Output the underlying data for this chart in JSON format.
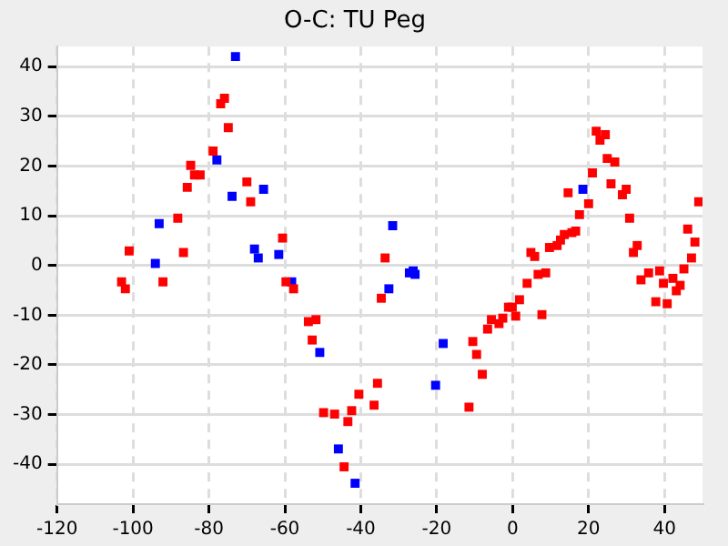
{
  "chart_data": {
    "type": "scatter",
    "title": "O-C: TU Peg",
    "marker": "square",
    "grid": true,
    "legend": false,
    "xlim": [
      -120,
      50
    ],
    "xticks": [
      -120,
      -100,
      -80,
      -60,
      -40,
      -20,
      0,
      20,
      40
    ],
    "ylim": [
      -48,
      44
    ],
    "yticks": [
      -40,
      -30,
      -20,
      -10,
      0,
      10,
      20,
      30,
      40
    ],
    "series": [
      {
        "color": "#ff0000",
        "x": [
          -75.9,
          -76.9,
          -74.9,
          -78.9,
          -84.8,
          -83.8,
          -82.3,
          -85.7,
          -70,
          -69,
          -88.2,
          -101,
          -86.7,
          -60.6,
          -103,
          -102,
          -92.1,
          -59.7,
          -33.6,
          -57.7,
          -34.6,
          -53.8,
          -51.8,
          -52.8,
          -10.5,
          -9.5,
          -8,
          -35.6,
          -40.5,
          -36.5,
          -42.4,
          -49.8,
          -46.9,
          -43.4,
          -11.5,
          -44.4,
          22,
          24.4,
          23,
          24.9,
          26.9,
          21,
          14.6,
          25.9,
          29.9,
          28.9,
          20,
          17.6,
          49,
          30.8,
          46.1,
          48,
          32.8,
          31.8,
          16.6,
          15.6,
          13.6,
          12.6,
          11.7,
          9.7,
          4.8,
          5.8,
          8.7,
          6.7,
          3.8,
          47.1,
          45.1,
          38.7,
          35.8,
          42.2,
          33.8,
          39.7,
          44.1,
          1.8,
          0.8,
          -2.6,
          -3.6,
          -1.1,
          -0.1,
          7.7,
          43.1,
          37.7,
          40.7,
          -6.6,
          -5.6
        ],
        "values": [
          33.6,
          32.5,
          27.7,
          23,
          20.1,
          18.2,
          18.2,
          15.7,
          16.8,
          12.8,
          9.5,
          2.9,
          2.6,
          5.5,
          -3.3,
          -4.7,
          -3.3,
          -3.3,
          1.5,
          -4.7,
          -6.6,
          -11.3,
          -10.9,
          -15,
          -15.3,
          -17.9,
          -21.9,
          -23.7,
          -25.9,
          -28.1,
          -29.2,
          -29.6,
          -29.9,
          -31.4,
          -28.5,
          -40.5,
          27,
          26.3,
          25.2,
          21.5,
          20.8,
          18.6,
          14.6,
          16.4,
          15.3,
          14.2,
          12.4,
          10.2,
          12.8,
          9.5,
          7.3,
          4.7,
          4,
          2.6,
          6.9,
          6.6,
          6.2,
          5.1,
          4,
          3.6,
          2.6,
          1.8,
          -1.5,
          -1.8,
          -3.6,
          1.5,
          -0.7,
          -1.1,
          -1.5,
          -2.6,
          -2.9,
          -3.6,
          -4,
          -6.9,
          -10.2,
          -10.6,
          -11.7,
          -8.4,
          -8.4,
          -9.9,
          -5.1,
          -7.3,
          -7.7,
          -12.8,
          -10.9
        ]
      },
      {
        "color": "#0000ff",
        "x": [
          -73,
          -77.9,
          -65.6,
          -73.9,
          -93.1,
          -68,
          -67,
          -61.6,
          -94.1,
          -31.6,
          -27.2,
          -25.7,
          -26.2,
          -32.6,
          -58.2,
          -50.8,
          -18.3,
          -20.3,
          -45.9,
          -41.5,
          18.5
        ],
        "values": [
          42,
          21.2,
          15.3,
          13.9,
          8.4,
          3.3,
          1.5,
          2.2,
          0.4,
          8,
          -1.5,
          -1.8,
          -1.1,
          -4.7,
          -3.3,
          -17.5,
          -15.7,
          -24.1,
          -36.9,
          -43.8,
          15.3
        ]
      }
    ]
  }
}
